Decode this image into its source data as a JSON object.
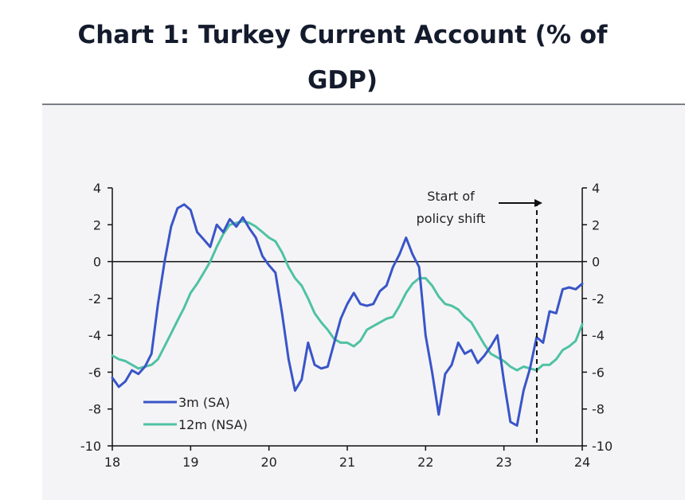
{
  "header": {
    "title": "Chart 1: Turkey Current Account (% of GDP)"
  },
  "chart_data": {
    "type": "line",
    "title": "Chart 1: Turkey Current Account (% of GDP)",
    "xlabel": "",
    "ylabel": "",
    "ylim": [
      -10,
      4
    ],
    "xlim": [
      18,
      24
    ],
    "y_ticks": [
      4,
      2,
      0,
      -2,
      -4,
      -6,
      -8,
      -10
    ],
    "y_tick_labels": [
      "4",
      "2",
      "0",
      "-2",
      "-4",
      "-6",
      "-8",
      "-10"
    ],
    "x_ticks": [
      18,
      19,
      20,
      21,
      22,
      23,
      24
    ],
    "x_tick_labels": [
      "18",
      "19",
      "20",
      "21",
      "22",
      "23",
      "24"
    ],
    "zero_line": true,
    "legend_position": "bottom-left",
    "annotation": {
      "line1": "Start of",
      "line2": "policy shift",
      "x": 23.42
    },
    "series": [
      {
        "name": "3m (SA)",
        "color": "#3a55c8",
        "x": [
          18.0,
          18.083,
          18.167,
          18.25,
          18.333,
          18.417,
          18.5,
          18.583,
          18.667,
          18.75,
          18.833,
          18.917,
          19.0,
          19.083,
          19.167,
          19.25,
          19.333,
          19.417,
          19.5,
          19.583,
          19.667,
          19.75,
          19.833,
          19.917,
          20.0,
          20.083,
          20.167,
          20.25,
          20.333,
          20.417,
          20.5,
          20.583,
          20.667,
          20.75,
          20.833,
          20.917,
          21.0,
          21.083,
          21.167,
          21.25,
          21.333,
          21.417,
          21.5,
          21.583,
          21.667,
          21.75,
          21.833,
          21.917,
          22.0,
          22.083,
          22.167,
          22.25,
          22.333,
          22.417,
          22.5,
          22.583,
          22.667,
          22.75,
          22.833,
          22.917,
          23.0,
          23.083,
          23.167,
          23.25,
          23.333,
          23.417,
          23.5,
          23.583,
          23.667,
          23.75,
          23.833,
          23.917,
          24.0
        ],
        "values": [
          -6.3,
          -6.8,
          -6.5,
          -5.9,
          -6.1,
          -5.7,
          -5.0,
          -2.3,
          0.0,
          1.9,
          2.9,
          3.1,
          2.8,
          1.6,
          1.2,
          0.8,
          2.0,
          1.6,
          2.3,
          1.9,
          2.4,
          1.8,
          1.3,
          0.3,
          -0.2,
          -0.6,
          -2.8,
          -5.3,
          -7.0,
          -6.4,
          -4.4,
          -5.6,
          -5.8,
          -5.7,
          -4.4,
          -3.1,
          -2.3,
          -1.7,
          -2.3,
          -2.4,
          -2.3,
          -1.6,
          -1.3,
          -0.3,
          0.4,
          1.3,
          0.4,
          -0.3,
          -4.0,
          -6.0,
          -8.3,
          -6.1,
          -5.6,
          -4.4,
          -5.0,
          -4.8,
          -5.5,
          -5.1,
          -4.6,
          -4.0,
          -6.5,
          -8.7,
          -8.9,
          -7.0,
          -5.8,
          -4.1,
          -4.4,
          -2.7,
          -2.8,
          -1.5,
          -1.4,
          -1.5,
          -1.2
        ]
      },
      {
        "name": "12m (NSA)",
        "color": "#4fc2a3",
        "x": [
          18.0,
          18.083,
          18.167,
          18.25,
          18.333,
          18.417,
          18.5,
          18.583,
          18.667,
          18.75,
          18.833,
          18.917,
          19.0,
          19.083,
          19.167,
          19.25,
          19.333,
          19.417,
          19.5,
          19.583,
          19.667,
          19.75,
          19.833,
          19.917,
          20.0,
          20.083,
          20.167,
          20.25,
          20.333,
          20.417,
          20.5,
          20.583,
          20.667,
          20.75,
          20.833,
          20.917,
          21.0,
          21.083,
          21.167,
          21.25,
          21.333,
          21.417,
          21.5,
          21.583,
          21.667,
          21.75,
          21.833,
          21.917,
          22.0,
          22.083,
          22.167,
          22.25,
          22.333,
          22.417,
          22.5,
          22.583,
          22.667,
          22.75,
          22.833,
          22.917,
          23.0,
          23.083,
          23.167,
          23.25,
          23.333,
          23.417,
          23.5,
          23.583,
          23.667,
          23.75,
          23.833,
          23.917,
          24.0
        ],
        "values": [
          -5.1,
          -5.3,
          -5.4,
          -5.6,
          -5.8,
          -5.7,
          -5.6,
          -5.3,
          -4.6,
          -3.9,
          -3.2,
          -2.5,
          -1.7,
          -1.2,
          -0.6,
          0.0,
          0.8,
          1.5,
          2.0,
          2.1,
          2.2,
          2.1,
          1.9,
          1.6,
          1.3,
          1.1,
          0.5,
          -0.3,
          -0.9,
          -1.3,
          -2.0,
          -2.8,
          -3.3,
          -3.7,
          -4.2,
          -4.4,
          -4.4,
          -4.6,
          -4.3,
          -3.7,
          -3.5,
          -3.3,
          -3.1,
          -3.0,
          -2.4,
          -1.7,
          -1.2,
          -0.9,
          -0.9,
          -1.3,
          -1.9,
          -2.3,
          -2.4,
          -2.6,
          -3.0,
          -3.3,
          -3.9,
          -4.5,
          -5.0,
          -5.2,
          -5.4,
          -5.7,
          -5.9,
          -5.7,
          -5.8,
          -5.9,
          -5.6,
          -5.6,
          -5.3,
          -4.8,
          -4.6,
          -4.3,
          -3.4
        ]
      }
    ]
  }
}
